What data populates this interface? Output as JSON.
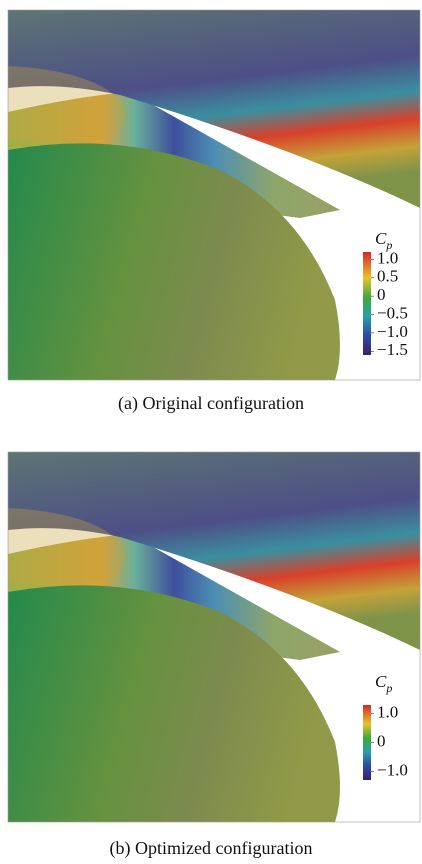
{
  "panels": [
    {
      "caption": "(a) Original configuration",
      "colorbar": {
        "label": "C",
        "label_sub": "p",
        "lim": [
          -1.6,
          1.2
        ],
        "ticks": [
          {
            "value": 1,
            "label": "1.0"
          },
          0.5,
          0,
          {
            "value": -0.5,
            "label": "−0.5"
          },
          {
            "value": -1,
            "label": "−1.0"
          },
          {
            "value": -1.5,
            "label": "−1.5"
          }
        ]
      }
    },
    {
      "caption": "(b) Optimized configuration",
      "colorbar": {
        "label": "C",
        "label_sub": "p",
        "lim": [
          -1.3,
          1.3
        ],
        "ticks": [
          {
            "value": 1,
            "label": "1.0"
          },
          0,
          {
            "value": -1,
            "label": "−1.0"
          }
        ]
      }
    }
  ]
}
